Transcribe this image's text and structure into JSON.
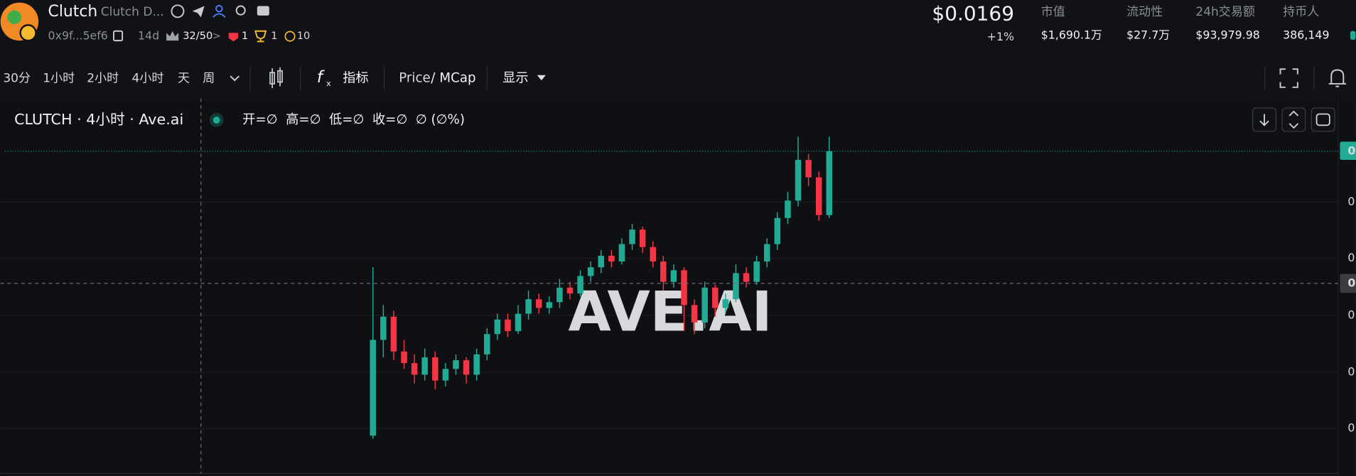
{
  "header": {
    "name": "Clutch",
    "full_name": "Clutch D...",
    "address": "0x9f...5ef6",
    "age": "14d",
    "score": "32/50",
    "badge_red": "1",
    "badge_trophy": "1",
    "badge_coin": "10",
    "price": "$0.0169",
    "change": "+1%",
    "stats": [
      {
        "label": "市值",
        "value": "$1,690.1万"
      },
      {
        "label": "流动性",
        "value": "$27.7万"
      },
      {
        "label": "24h交易额",
        "value": "$93,979.98"
      },
      {
        "label": "持币人",
        "value": "386,149"
      }
    ]
  },
  "toolbar": {
    "intervals": [
      "30分",
      "1小时",
      "2小时",
      "4小时",
      "天",
      "周"
    ],
    "active_interval": 3,
    "indicators": "指标",
    "price_mode": "Price",
    "slash": "/",
    "mcap_mode": "MCap",
    "display": "显示"
  },
  "legend": {
    "symbol": "CLUTCH · 4小时 · Ave.ai",
    "ohlc": "开=∅  高=∅  低=∅  收=∅  ∅ (∅%)"
  },
  "watermark": "AVE.AI",
  "axis_labels": [
    "0",
    "0",
    "0",
    "0",
    "0",
    "0",
    "0"
  ],
  "chart_data": {
    "type": "candlestick",
    "up_color": "#22ab94",
    "down_color": "#f23645",
    "ylim": [
      0.0058,
      0.0183
    ],
    "price_line": 0.0169,
    "candles": [
      [
        0.0071,
        0.0129,
        0.007,
        0.0104
      ],
      [
        0.0104,
        0.0116,
        0.0098,
        0.0112
      ],
      [
        0.0112,
        0.0114,
        0.0097,
        0.01
      ],
      [
        0.01,
        0.0104,
        0.0094,
        0.0096
      ],
      [
        0.0096,
        0.0099,
        0.0089,
        0.0092
      ],
      [
        0.0092,
        0.0101,
        0.009,
        0.0098
      ],
      [
        0.0098,
        0.01,
        0.0087,
        0.009
      ],
      [
        0.009,
        0.0096,
        0.0088,
        0.0094
      ],
      [
        0.0094,
        0.0099,
        0.0092,
        0.0097
      ],
      [
        0.0097,
        0.0098,
        0.0089,
        0.0092
      ],
      [
        0.0092,
        0.0101,
        0.009,
        0.0099
      ],
      [
        0.0099,
        0.0108,
        0.0097,
        0.0106
      ],
      [
        0.0106,
        0.0113,
        0.0104,
        0.0111
      ],
      [
        0.0111,
        0.0113,
        0.0105,
        0.0107
      ],
      [
        0.0107,
        0.0116,
        0.0106,
        0.0113
      ],
      [
        0.0113,
        0.0121,
        0.0111,
        0.0118
      ],
      [
        0.0118,
        0.012,
        0.0113,
        0.0115
      ],
      [
        0.0115,
        0.0119,
        0.0113,
        0.0117
      ],
      [
        0.0117,
        0.0125,
        0.0115,
        0.0122
      ],
      [
        0.0122,
        0.0124,
        0.0118,
        0.012
      ],
      [
        0.012,
        0.0128,
        0.0119,
        0.0126
      ],
      [
        0.0126,
        0.0131,
        0.0124,
        0.0129
      ],
      [
        0.0129,
        0.0135,
        0.0127,
        0.0133
      ],
      [
        0.0133,
        0.0135,
        0.0129,
        0.0131
      ],
      [
        0.0131,
        0.0139,
        0.013,
        0.0137
      ],
      [
        0.0137,
        0.0144,
        0.0135,
        0.0142
      ],
      [
        0.0142,
        0.0143,
        0.0134,
        0.0136
      ],
      [
        0.0136,
        0.0138,
        0.0129,
        0.0131
      ],
      [
        0.0131,
        0.0133,
        0.0121,
        0.0124
      ],
      [
        0.0124,
        0.013,
        0.0122,
        0.0128
      ],
      [
        0.0128,
        0.0129,
        0.0107,
        0.0116
      ],
      [
        0.0116,
        0.0118,
        0.0106,
        0.011
      ],
      [
        0.011,
        0.0124,
        0.0108,
        0.0122
      ],
      [
        0.0122,
        0.0123,
        0.0112,
        0.0115
      ],
      [
        0.0115,
        0.012,
        0.0113,
        0.0118
      ],
      [
        0.0118,
        0.013,
        0.0117,
        0.0127
      ],
      [
        0.0127,
        0.0129,
        0.0122,
        0.0124
      ],
      [
        0.0124,
        0.0133,
        0.0123,
        0.0131
      ],
      [
        0.0131,
        0.0139,
        0.0129,
        0.0137
      ],
      [
        0.0137,
        0.0148,
        0.0135,
        0.0146
      ],
      [
        0.0146,
        0.0155,
        0.0144,
        0.0152
      ],
      [
        0.0152,
        0.0174,
        0.015,
        0.0166
      ],
      [
        0.0166,
        0.0168,
        0.0157,
        0.016
      ],
      [
        0.016,
        0.0162,
        0.0145,
        0.0147
      ],
      [
        0.0147,
        0.0174,
        0.0146,
        0.0169
      ]
    ]
  }
}
